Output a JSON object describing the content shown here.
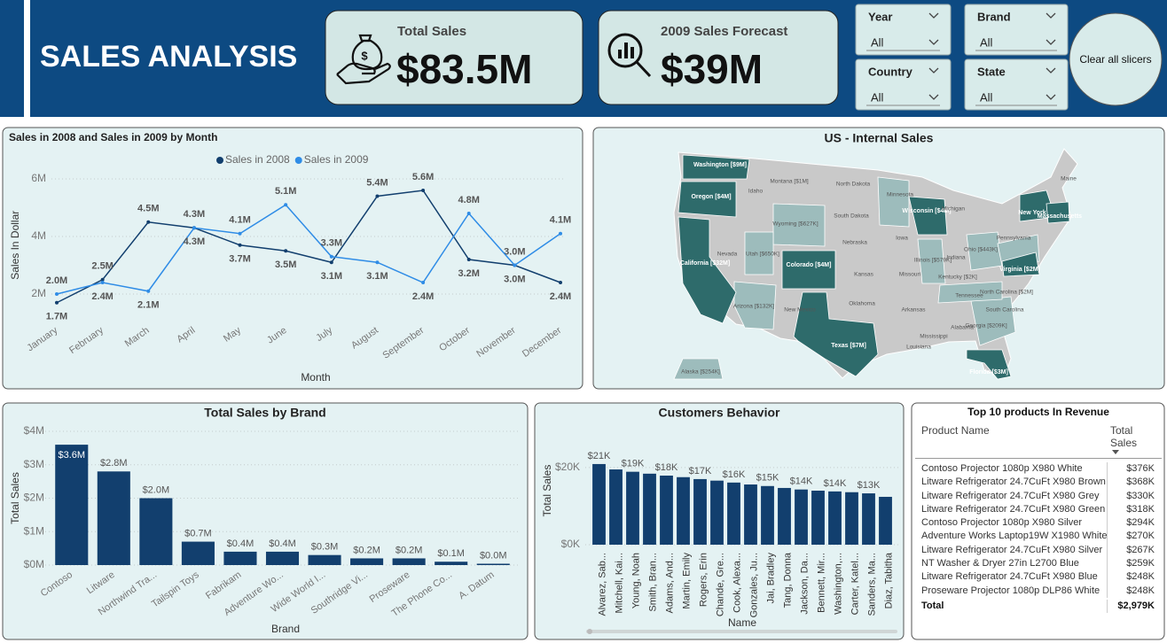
{
  "header": {
    "title": "SALES ANALYSIS"
  },
  "kpis": [
    {
      "title": "Total Sales",
      "value": "$83.5M"
    },
    {
      "title": "2009 Sales Forecast",
      "value": "$39M"
    }
  ],
  "slicers": [
    {
      "label": "Year",
      "value": "All"
    },
    {
      "label": "Brand",
      "value": "All"
    },
    {
      "label": "Country",
      "value": "All"
    },
    {
      "label": "State",
      "value": "All"
    }
  ],
  "clear_button": "Clear all slicers",
  "chart_data": [
    {
      "type": "line",
      "title": "Sales in 2008 and Sales in 2009 by Month",
      "x_label": "Month",
      "y_label": "Sales In Dollar",
      "categories": [
        "January",
        "February",
        "March",
        "April",
        "May",
        "June",
        "July",
        "August",
        "September",
        "October",
        "November",
        "December"
      ],
      "series": [
        {
          "name": "Sales in 2008",
          "color": "#123f6e",
          "values": [
            1.7,
            2.5,
            4.5,
            4.3,
            3.7,
            3.5,
            3.1,
            5.4,
            5.6,
            3.2,
            3.0,
            2.4
          ],
          "value_labels": [
            "1.7M",
            "2.5M",
            "4.5M",
            "4.3M",
            "3.7M",
            "3.5M",
            "3.1M",
            "5.4M",
            "5.6M",
            "3.2M",
            "3.0M",
            "2.4M"
          ]
        },
        {
          "name": "Sales in 2009",
          "color": "#2f8ce6",
          "values": [
            2.0,
            2.4,
            2.1,
            4.3,
            4.1,
            5.1,
            3.3,
            3.1,
            2.4,
            4.8,
            3.0,
            4.1
          ],
          "value_labels": [
            "2.0M",
            "2.4M",
            "2.1M",
            "4.3M",
            "4.1M",
            "5.1M",
            "3.3M",
            "3.1M",
            "2.4M",
            "4.8M",
            "3.0M",
            "4.1M"
          ]
        }
      ],
      "ylim": [
        1.4,
        6
      ],
      "yticks": [
        {
          "value": 2,
          "label": "2M"
        },
        {
          "value": 4,
          "label": "4M"
        },
        {
          "value": 6,
          "label": "6M"
        }
      ],
      "grid": true,
      "legend": "top"
    },
    {
      "type": "bar",
      "title": "Total Sales by Brand",
      "x_label": "Brand",
      "y_label": "Total Sales",
      "categories": [
        "Contoso",
        "Litware",
        "Northwind Tra...",
        "Tailspin Toys",
        "Fabrikam",
        "Adventure Wo...",
        "Wide World I...",
        "Southridge Vi...",
        "Proseware",
        "The Phone Co...",
        "A. Datum"
      ],
      "values": [
        3.6,
        2.8,
        2.0,
        0.7,
        0.4,
        0.4,
        0.3,
        0.2,
        0.2,
        0.1,
        0.04
      ],
      "value_labels": [
        "$3.6M",
        "$2.8M",
        "$2.0M",
        "$0.7M",
        "$0.4M",
        "$0.4M",
        "$0.3M",
        "$0.2M",
        "$0.2M",
        "$0.1M",
        "$0.0M"
      ],
      "color": "#123f6e",
      "ylim": [
        0,
        4
      ],
      "yticks": [
        {
          "value": 0,
          "label": "$0M"
        },
        {
          "value": 1,
          "label": "$1M"
        },
        {
          "value": 2,
          "label": "$2M"
        },
        {
          "value": 3,
          "label": "$3M"
        },
        {
          "value": 4,
          "label": "$4M"
        }
      ],
      "grid": true
    },
    {
      "type": "bar",
      "title": "Customers Behavior",
      "x_label": "Name",
      "y_label": "Total Sales",
      "categories": [
        "Alvarez, Sab...",
        "Mitchell, Kai...",
        "Young, Noah",
        "Smith, Bran...",
        "Adams, And...",
        "Martin, Emily",
        "Rogers, Erin",
        "Chande, Gre...",
        "Cook, Alexa...",
        "Gonzales, Ju...",
        "Jai, Bradley",
        "Tang, Donna",
        "Jackson, Da...",
        "Bennett, Mir...",
        "Washington,...",
        "Carter, Katel...",
        "Sanders, Ma...",
        "Diaz, Tabitha"
      ],
      "values": [
        20.9,
        19.5,
        18.9,
        18.4,
        17.9,
        17.5,
        17.0,
        16.6,
        16.1,
        15.6,
        15.2,
        14.7,
        14.3,
        14.0,
        13.8,
        13.6,
        13.3,
        12.4
      ],
      "value_labels": [
        "$21K",
        null,
        "$19K",
        null,
        "$18K",
        null,
        "$17K",
        null,
        "$16K",
        null,
        "$15K",
        null,
        "$14K",
        null,
        "$14K",
        null,
        "$13K",
        null
      ],
      "color": "#123f6e",
      "ylim": [
        0,
        28
      ],
      "yticks": [
        {
          "value": 0,
          "label": "$0K"
        },
        {
          "value": 20,
          "label": "$20K"
        }
      ],
      "grid": true
    }
  ],
  "map": {
    "title": "US - Internal Sales",
    "states": [
      "Washington [$9M]",
      "Oregon [$4M]",
      "California [$32M]",
      "Idaho",
      "Montana [$1M]",
      "Wyoming [$627K]",
      "Nevada",
      "Utah [$650K]",
      "Colorado [$4M]",
      "Arizona [$132K]",
      "New Mexico",
      "North Dakota",
      "South Dakota",
      "Nebraska",
      "Kansas",
      "Oklahoma",
      "Texas [$7M]",
      "Minnesota",
      "Iowa",
      "Missouri",
      "Arkansas",
      "Louisiana",
      "Wisconsin [$4M]",
      "Illinois [$579K]",
      "Michigan",
      "Indiana",
      "Kentucky [$2K]",
      "Tennessee",
      "Mississippi",
      "Alabama",
      "Ohio [$443K]",
      "Pennsylvania",
      "New York",
      "Massachusetts",
      "Maine",
      "Virginia [$2M]",
      "North Carolina [$2M]",
      "South Carolina",
      "Georgia [$209K]",
      "Florida [$3M]",
      "Alaska [$254K]"
    ]
  },
  "table": {
    "title": "Top 10 products In Revenue",
    "columns": [
      "Product Name",
      "Total Sales"
    ],
    "rows": [
      [
        "Contoso Projector 1080p X980 White",
        "$376K"
      ],
      [
        "Litware Refrigerator 24.7CuFt X980 Brown",
        "$368K"
      ],
      [
        "Litware Refrigerator 24.7CuFt X980 Grey",
        "$330K"
      ],
      [
        "Litware Refrigerator 24.7CuFt X980 Green",
        "$318K"
      ],
      [
        "Contoso Projector 1080p X980 Silver",
        "$294K"
      ],
      [
        "Adventure Works Laptop19W X1980 White",
        "$270K"
      ],
      [
        "Litware Refrigerator 24.7CuFt X980 Silver",
        "$267K"
      ],
      [
        "NT Washer & Dryer 27in L2700 Blue",
        "$259K"
      ],
      [
        "Litware Refrigerator 24.7CuFt X980 Blue",
        "$248K"
      ],
      [
        "Proseware Projector 1080p DLP86 White",
        "$248K"
      ]
    ],
    "total": [
      "Total",
      "$2,979K"
    ]
  }
}
